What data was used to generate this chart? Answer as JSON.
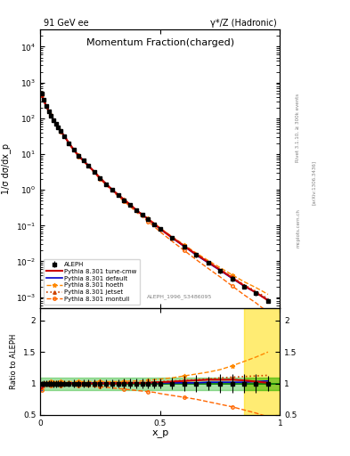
{
  "title": "Momentum Fraction(charged)",
  "top_left_label": "91 GeV ee",
  "top_right_label": "γ*/Z (Hadronic)",
  "ylabel_main": "1/σ dσ/dx_p",
  "ylabel_ratio": "Ratio to ALEPH",
  "xlabel": "x_p",
  "watermark": "ALEPH_1996_S3486095",
  "rivet_label": "Rivet 3.1.10, ≥ 300k events",
  "arxiv_label": "[arXiv:1306.3436]",
  "mcplots_label": "mcplots.cern.ch",
  "xp": [
    0.005,
    0.015,
    0.025,
    0.035,
    0.045,
    0.055,
    0.065,
    0.075,
    0.085,
    0.1,
    0.12,
    0.14,
    0.16,
    0.18,
    0.2,
    0.225,
    0.25,
    0.275,
    0.3,
    0.325,
    0.35,
    0.375,
    0.4,
    0.425,
    0.45,
    0.475,
    0.5,
    0.55,
    0.6,
    0.65,
    0.7,
    0.75,
    0.8,
    0.85,
    0.9,
    0.95
  ],
  "aleph_y": [
    500,
    320,
    220,
    160,
    120,
    90,
    70,
    55,
    44,
    32,
    20,
    13,
    9.0,
    6.5,
    4.8,
    3.2,
    2.1,
    1.45,
    1.0,
    0.72,
    0.52,
    0.38,
    0.27,
    0.2,
    0.15,
    0.11,
    0.08,
    0.045,
    0.026,
    0.015,
    0.009,
    0.0055,
    0.0033,
    0.002,
    0.0013,
    0.0008
  ],
  "aleph_err": [
    20,
    15,
    10,
    8,
    6,
    5,
    4,
    3,
    2.5,
    1.5,
    1.0,
    0.8,
    0.5,
    0.4,
    0.3,
    0.2,
    0.15,
    0.1,
    0.07,
    0.05,
    0.04,
    0.03,
    0.02,
    0.015,
    0.012,
    0.009,
    0.006,
    0.004,
    0.003,
    0.002,
    0.001,
    0.0008,
    0.0005,
    0.0003,
    0.0002,
    0.0001
  ],
  "default_ratio": [
    0.88,
    0.97,
    0.99,
    1.0,
    1.01,
    1.01,
    1.01,
    1.01,
    1.01,
    1.01,
    1.01,
    1.01,
    1.01,
    1.01,
    1.01,
    1.01,
    1.01,
    1.01,
    1.01,
    1.01,
    1.01,
    1.01,
    1.01,
    1.01,
    1.01,
    1.01,
    1.01,
    1.01,
    1.01,
    1.01,
    1.02,
    1.02,
    1.02,
    1.02,
    1.03,
    1.04
  ],
  "hoeth_ratio": [
    1.0,
    1.02,
    1.03,
    1.03,
    1.03,
    1.03,
    1.03,
    1.03,
    1.03,
    1.03,
    1.03,
    1.03,
    1.03,
    1.03,
    1.03,
    1.03,
    1.03,
    1.03,
    1.03,
    1.03,
    1.03,
    1.04,
    1.04,
    1.04,
    1.05,
    1.06,
    1.07,
    1.09,
    1.12,
    1.15,
    1.18,
    1.22,
    1.28,
    1.35,
    1.42,
    1.5
  ],
  "jetset_ratio": [
    1.0,
    1.01,
    1.01,
    1.01,
    1.01,
    1.01,
    1.01,
    1.01,
    1.01,
    1.01,
    1.01,
    1.01,
    1.01,
    1.01,
    1.01,
    1.01,
    1.01,
    1.01,
    1.01,
    1.01,
    1.01,
    1.01,
    1.01,
    1.01,
    1.02,
    1.02,
    1.03,
    1.04,
    1.05,
    1.06,
    1.07,
    1.09,
    1.1,
    1.11,
    1.12,
    1.13
  ],
  "montull_ratio": [
    0.9,
    0.93,
    0.95,
    0.96,
    0.97,
    0.97,
    0.97,
    0.97,
    0.97,
    0.97,
    0.97,
    0.96,
    0.96,
    0.96,
    0.95,
    0.95,
    0.95,
    0.94,
    0.93,
    0.92,
    0.91,
    0.9,
    0.89,
    0.88,
    0.87,
    0.86,
    0.84,
    0.81,
    0.78,
    0.75,
    0.71,
    0.67,
    0.63,
    0.58,
    0.53,
    0.47
  ],
  "tunecmw_ratio": [
    0.92,
    0.98,
    0.99,
    1.0,
    1.0,
    1.0,
    1.0,
    1.0,
    1.0,
    1.0,
    1.0,
    1.0,
    1.0,
    1.0,
    1.0,
    1.0,
    1.0,
    1.0,
    1.0,
    1.0,
    1.01,
    1.01,
    1.01,
    1.01,
    1.01,
    1.02,
    1.02,
    1.03,
    1.04,
    1.05,
    1.06,
    1.06,
    1.06,
    1.05,
    1.03,
    1.01
  ],
  "color_aleph": "#000000",
  "color_default": "#0000cc",
  "color_hoeth": "#ff8800",
  "color_jetset": "#cc4400",
  "color_montull": "#ff6600",
  "color_tunecmw": "#cc0000",
  "bg_green": "#00aa00",
  "bg_yellow": "#ffdd00",
  "ylim_main": [
    0.0005,
    30000.0
  ],
  "ylim_ratio": [
    0.5,
    2.2
  ],
  "xlim": [
    0.0,
    1.0
  ]
}
